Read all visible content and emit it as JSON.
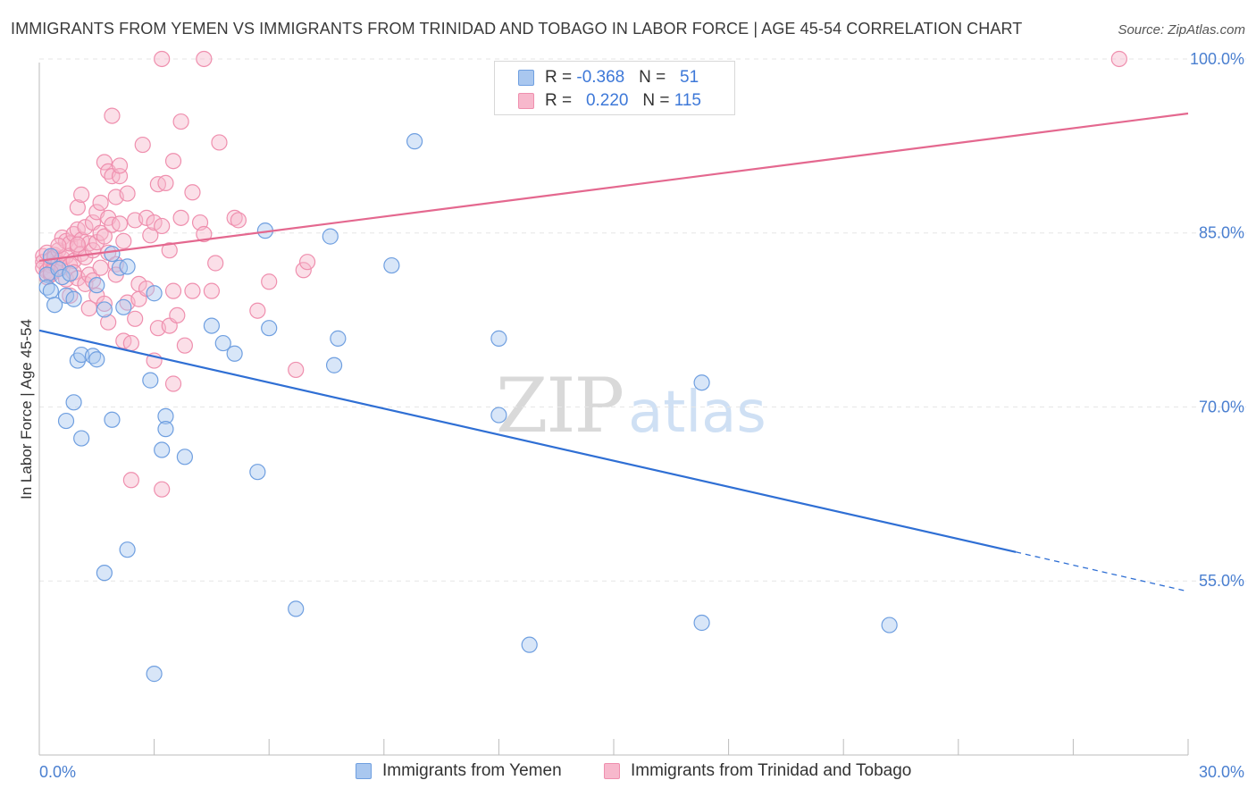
{
  "title": "IMMIGRANTS FROM YEMEN VS IMMIGRANTS FROM TRINIDAD AND TOBAGO IN LABOR FORCE | AGE 45-54 CORRELATION CHART",
  "source": "Source: ZipAtlas.com",
  "watermark": {
    "zip": "ZIP",
    "atlas": "atlas"
  },
  "legend_top": {
    "rows": [
      {
        "r_label": "R = ",
        "r_value": "-0.368",
        "n_label": "N = ",
        "n_value": "51"
      },
      {
        "r_label": "R = ",
        "r_value": "0.220",
        "n_label": "N = ",
        "n_value": "115"
      }
    ]
  },
  "legend_bottom": {
    "series0": "Immigrants from Yemen",
    "series1": "Immigrants from Trinidad and Tobago"
  },
  "colors": {
    "blue_fill": "#a9c7ef",
    "blue_stroke": "#6f9fe0",
    "blue_line": "#2f6fd4",
    "pink_fill": "#f7b8cc",
    "pink_stroke": "#ef8fae",
    "pink_line": "#e4688f",
    "grid": "#e6e6e6",
    "tick_text": "#4a7fd0"
  },
  "chart_data": {
    "type": "scatter",
    "title": "IMMIGRANTS FROM YEMEN VS IMMIGRANTS FROM TRINIDAD AND TOBAGO IN LABOR FORCE | AGE 45-54 CORRELATION CHART",
    "xlabel": "",
    "ylabel": "In Labor Force | Age 45-54",
    "xlim": [
      0,
      30
    ],
    "ylim": [
      40,
      102
    ],
    "x_tick_labels": [
      {
        "value": 0,
        "label": "0.0%"
      },
      {
        "value": 30,
        "label": "30.0%"
      }
    ],
    "y_tick_labels": [
      {
        "value": 100,
        "label": "100.0%"
      },
      {
        "value": 85,
        "label": "85.0%"
      },
      {
        "value": 70,
        "label": "70.0%"
      },
      {
        "value": 55,
        "label": "55.0%"
      }
    ],
    "series": [
      {
        "name": "Immigrants from Yemen",
        "R": -0.368,
        "N": 51,
        "trend": {
          "x0": 0,
          "y0": 76.6,
          "x1": 25.5,
          "y1": 57.5,
          "dash_x1": 30,
          "dash_y1": 54.1
        },
        "points": [
          [
            0.2,
            81.4
          ],
          [
            0.2,
            80.3
          ],
          [
            0.3,
            83.0
          ],
          [
            0.3,
            80.0
          ],
          [
            0.4,
            78.8
          ],
          [
            0.5,
            81.9
          ],
          [
            0.6,
            81.2
          ],
          [
            0.7,
            79.6
          ],
          [
            0.8,
            81.5
          ],
          [
            0.9,
            79.3
          ],
          [
            0.7,
            68.8
          ],
          [
            0.9,
            70.4
          ],
          [
            1.0,
            74.0
          ],
          [
            1.1,
            74.5
          ],
          [
            1.1,
            67.3
          ],
          [
            1.4,
            74.4
          ],
          [
            1.5,
            74.1
          ],
          [
            1.5,
            80.5
          ],
          [
            1.7,
            78.4
          ],
          [
            1.9,
            83.2
          ],
          [
            1.9,
            68.9
          ],
          [
            2.1,
            82.0
          ],
          [
            2.2,
            78.6
          ],
          [
            2.3,
            82.1
          ],
          [
            2.3,
            57.7
          ],
          [
            1.7,
            55.7
          ],
          [
            2.9,
            72.3
          ],
          [
            3.0,
            79.8
          ],
          [
            3.2,
            66.3
          ],
          [
            3.3,
            69.2
          ],
          [
            3.3,
            68.1
          ],
          [
            3.8,
            65.7
          ],
          [
            4.5,
            77.0
          ],
          [
            4.8,
            75.5
          ],
          [
            5.1,
            74.6
          ],
          [
            5.7,
            64.4
          ],
          [
            5.9,
            85.2
          ],
          [
            6.0,
            76.8
          ],
          [
            6.7,
            52.6
          ],
          [
            7.6,
            84.7
          ],
          [
            7.7,
            73.6
          ],
          [
            7.8,
            75.9
          ],
          [
            9.2,
            82.2
          ],
          [
            9.8,
            92.9
          ],
          [
            12.0,
            69.3
          ],
          [
            12.0,
            75.9
          ],
          [
            3.0,
            47.0
          ],
          [
            12.8,
            49.5
          ],
          [
            17.3,
            72.1
          ],
          [
            17.3,
            51.4
          ],
          [
            22.2,
            51.2
          ]
        ]
      },
      {
        "name": "Immigrants from Trinidad and Tobago",
        "R": 0.22,
        "N": 115,
        "trend": {
          "x0": 0,
          "y0": 82.6,
          "x1": 30,
          "y1": 95.3
        },
        "points": [
          [
            0.1,
            83.0
          ],
          [
            0.1,
            82.5
          ],
          [
            0.1,
            82.0
          ],
          [
            0.2,
            81.7
          ],
          [
            0.2,
            81.2
          ],
          [
            0.2,
            83.3
          ],
          [
            0.3,
            82.7
          ],
          [
            0.3,
            82.2
          ],
          [
            0.3,
            81.4
          ],
          [
            0.4,
            83.1
          ],
          [
            0.4,
            82.3
          ],
          [
            0.4,
            82.9
          ],
          [
            0.5,
            81.9
          ],
          [
            0.5,
            83.5
          ],
          [
            0.5,
            82.4
          ],
          [
            0.6,
            84.6
          ],
          [
            0.6,
            82.8
          ],
          [
            0.6,
            82.0
          ],
          [
            0.7,
            84.3
          ],
          [
            0.7,
            83.0
          ],
          [
            0.7,
            81.0
          ],
          [
            0.8,
            84.1
          ],
          [
            0.8,
            82.2
          ],
          [
            0.8,
            79.6
          ],
          [
            0.9,
            84.9
          ],
          [
            0.9,
            82.6
          ],
          [
            0.9,
            81.6
          ],
          [
            1.0,
            85.3
          ],
          [
            1.0,
            83.8
          ],
          [
            1.0,
            81.1
          ],
          [
            1.0,
            87.2
          ],
          [
            1.1,
            84.4
          ],
          [
            1.1,
            83.2
          ],
          [
            1.1,
            88.3
          ],
          [
            1.2,
            85.5
          ],
          [
            1.2,
            82.9
          ],
          [
            1.2,
            80.6
          ],
          [
            1.3,
            84.1
          ],
          [
            1.3,
            81.4
          ],
          [
            1.3,
            78.5
          ],
          [
            1.4,
            85.9
          ],
          [
            1.4,
            83.5
          ],
          [
            1.4,
            80.9
          ],
          [
            1.5,
            86.8
          ],
          [
            1.5,
            84.2
          ],
          [
            1.5,
            79.6
          ],
          [
            1.6,
            87.6
          ],
          [
            1.6,
            85.0
          ],
          [
            1.6,
            82.0
          ],
          [
            1.7,
            91.1
          ],
          [
            1.7,
            84.7
          ],
          [
            1.7,
            78.9
          ],
          [
            1.8,
            90.3
          ],
          [
            1.8,
            86.3
          ],
          [
            1.8,
            83.3
          ],
          [
            1.8,
            77.3
          ],
          [
            1.9,
            95.1
          ],
          [
            1.9,
            89.9
          ],
          [
            1.9,
            85.7
          ],
          [
            2.0,
            88.1
          ],
          [
            2.0,
            82.3
          ],
          [
            2.0,
            81.4
          ],
          [
            2.1,
            89.9
          ],
          [
            2.1,
            85.8
          ],
          [
            2.1,
            90.8
          ],
          [
            2.2,
            75.7
          ],
          [
            2.3,
            88.4
          ],
          [
            2.3,
            79.0
          ],
          [
            2.4,
            75.5
          ],
          [
            2.4,
            63.7
          ],
          [
            2.5,
            77.6
          ],
          [
            2.5,
            86.1
          ],
          [
            2.6,
            80.6
          ],
          [
            2.6,
            79.3
          ],
          [
            2.7,
            92.6
          ],
          [
            2.8,
            86.3
          ],
          [
            2.8,
            80.2
          ],
          [
            2.9,
            84.8
          ],
          [
            3.0,
            85.9
          ],
          [
            3.0,
            74.0
          ],
          [
            3.1,
            89.2
          ],
          [
            3.1,
            76.8
          ],
          [
            3.2,
            85.6
          ],
          [
            3.2,
            62.9
          ],
          [
            3.3,
            89.3
          ],
          [
            3.4,
            83.5
          ],
          [
            3.4,
            77.0
          ],
          [
            3.5,
            91.2
          ],
          [
            3.5,
            80.0
          ],
          [
            3.5,
            72.0
          ],
          [
            3.7,
            86.3
          ],
          [
            3.7,
            94.6
          ],
          [
            3.8,
            75.3
          ],
          [
            4.0,
            88.5
          ],
          [
            4.0,
            80.0
          ],
          [
            4.2,
            85.9
          ],
          [
            4.3,
            84.9
          ],
          [
            4.5,
            80.0
          ],
          [
            4.6,
            82.4
          ],
          [
            4.7,
            92.8
          ],
          [
            5.1,
            86.3
          ],
          [
            5.2,
            86.1
          ],
          [
            5.7,
            78.3
          ],
          [
            6.0,
            80.8
          ],
          [
            6.7,
            73.2
          ],
          [
            6.9,
            81.8
          ],
          [
            7.0,
            82.5
          ],
          [
            3.2,
            100.0
          ],
          [
            4.3,
            100.0
          ],
          [
            28.2,
            100.0
          ],
          [
            1.0,
            84.0
          ],
          [
            0.5,
            83.9
          ],
          [
            2.2,
            84.3
          ],
          [
            3.6,
            77.9
          ],
          [
            0.3,
            81.6
          ]
        ]
      }
    ]
  }
}
